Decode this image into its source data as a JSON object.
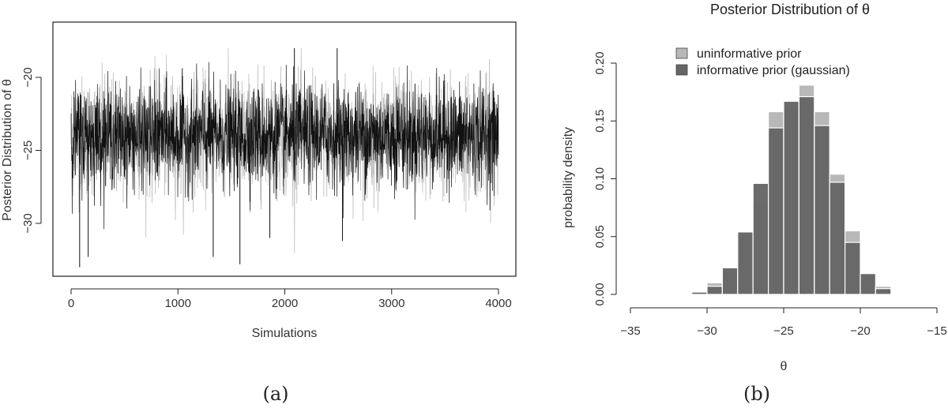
{
  "chart_data": [
    {
      "type": "line",
      "panel": "(a)",
      "xlabel": "Simulations",
      "ylabel": "Posterior Distribution of θ",
      "xlim": [
        0,
        4000
      ],
      "ylim": [
        -33,
        -17
      ],
      "xticks": [
        0,
        1000,
        2000,
        3000,
        4000
      ],
      "yticks": [
        -20,
        -25,
        -30
      ],
      "n_simulations": 4000,
      "trace_mean": -24,
      "trace_sd": 1.7,
      "series": [
        {
          "color": "#b3b3b3",
          "min": -32.5,
          "max": -18.0
        },
        {
          "color": "#111111",
          "min": -32.8,
          "max": -18.0
        }
      ],
      "extremes": [
        {
          "x": 80,
          "y": -33.0
        },
        {
          "x": 160,
          "y": -32.3
        },
        {
          "x": 1330,
          "y": -32.3
        },
        {
          "x": 1580,
          "y": -32.8
        },
        {
          "x": 2090,
          "y": -18.0
        },
        {
          "x": 2490,
          "y": -18.0
        },
        {
          "x": 2540,
          "y": -31.2
        },
        {
          "x": 1860,
          "y": -31.0
        }
      ],
      "axes_box": true
    },
    {
      "type": "bar",
      "panel": "(b)",
      "title": "Posterior Distribution of θ",
      "xlabel": "θ",
      "ylabel": "probability density",
      "xlim": [
        -35,
        -15
      ],
      "ylim": [
        0,
        0.2
      ],
      "xticks": [
        -35,
        -30,
        -25,
        -20,
        -15
      ],
      "yticks": [
        0.0,
        0.05,
        0.1,
        0.15,
        0.2
      ],
      "bin_width": 1,
      "bin_edges": [
        -32,
        -31,
        -30,
        -29,
        -28,
        -27,
        -26,
        -25,
        -24,
        -23,
        -22,
        -21,
        -20,
        -19,
        -18,
        -17
      ],
      "legend_position": "top",
      "series": [
        {
          "name": "uninformative prior",
          "color": "#b8b8b8",
          "values": [
            0.0005,
            0.001,
            0.01,
            0.02,
            0.05,
            0.078,
            0.158,
            0.161,
            0.181,
            0.158,
            0.104,
            0.055,
            0.016,
            0.007,
            0.0005
          ]
        },
        {
          "name": "informative prior (gaussian)",
          "color": "#666666",
          "values": [
            0.0002,
            0.002,
            0.007,
            0.023,
            0.054,
            0.096,
            0.144,
            0.167,
            0.171,
            0.146,
            0.097,
            0.045,
            0.018,
            0.005,
            0.0002
          ]
        }
      ]
    }
  ],
  "captions": [
    "(a)",
    "(b)"
  ]
}
